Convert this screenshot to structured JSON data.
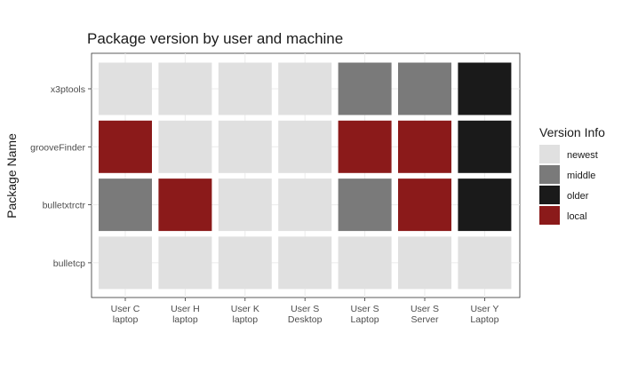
{
  "chart_data": {
    "type": "heatmap",
    "title": "Package version by user and machine",
    "xlabel": "",
    "ylabel": "Package Name",
    "x_categories": [
      [
        "User C",
        "laptop"
      ],
      [
        "User H",
        "laptop"
      ],
      [
        "User K",
        "laptop"
      ],
      [
        "User S",
        "Desktop"
      ],
      [
        "User S",
        "Laptop"
      ],
      [
        "User S",
        "Server"
      ],
      [
        "User Y",
        "Laptop"
      ]
    ],
    "y_categories": [
      "x3ptools",
      "grooveFinder",
      "bulletxtrctr",
      "bulletcp"
    ],
    "values": [
      [
        "newest",
        "newest",
        "newest",
        "newest",
        "middle",
        "middle",
        "older"
      ],
      [
        "local",
        "newest",
        "newest",
        "newest",
        "local",
        "local",
        "older"
      ],
      [
        "middle",
        "local",
        "newest",
        "newest",
        "middle",
        "local",
        "older"
      ],
      [
        "newest",
        "newest",
        "newest",
        "newest",
        "newest",
        "newest",
        "newest"
      ]
    ],
    "grid": true,
    "legend": {
      "title": "Version Info",
      "placement": "right",
      "items": [
        {
          "label": "newest",
          "color": "#e0e0e0"
        },
        {
          "label": "middle",
          "color": "#7a7a7a"
        },
        {
          "label": "older",
          "color": "#1a1a1a"
        },
        {
          "label": "local",
          "color": "#8b1a1a"
        }
      ]
    }
  }
}
